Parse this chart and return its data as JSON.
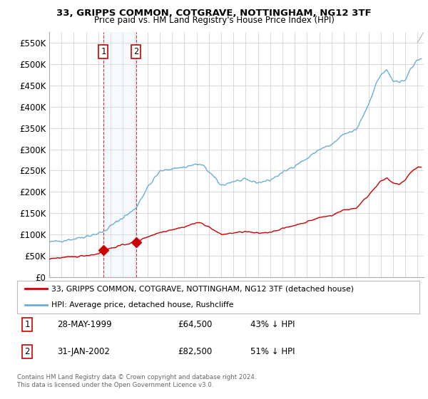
{
  "title": "33, GRIPPS COMMON, COTGRAVE, NOTTINGHAM, NG12 3TF",
  "subtitle": "Price paid vs. HM Land Registry's House Price Index (HPI)",
  "background_color": "#ffffff",
  "plot_bg_color": "#ffffff",
  "grid_color": "#cccccc",
  "hpi_color": "#6baed6",
  "price_color": "#cc0000",
  "marker_color": "#cc0000",
  "shade_color": "#ddeeff",
  "sale1_date": 1999.41,
  "sale1_price": 64500,
  "sale2_date": 2002.08,
  "sale2_price": 82500,
  "legend_line1": "33, GRIPPS COMMON, COTGRAVE, NOTTINGHAM, NG12 3TF (detached house)",
  "legend_line2": "HPI: Average price, detached house, Rushcliffe",
  "footnote": "Contains HM Land Registry data © Crown copyright and database right 2024.\nThis data is licensed under the Open Government Licence v3.0.",
  "ylim": [
    0,
    575000
  ],
  "yticks": [
    0,
    50000,
    100000,
    150000,
    200000,
    250000,
    300000,
    350000,
    400000,
    450000,
    500000,
    550000
  ],
  "ytick_labels": [
    "£0",
    "£50K",
    "£100K",
    "£150K",
    "£200K",
    "£250K",
    "£300K",
    "£350K",
    "£400K",
    "£450K",
    "£500K",
    "£550K"
  ],
  "xmin": 1995.0,
  "xmax": 2025.5
}
